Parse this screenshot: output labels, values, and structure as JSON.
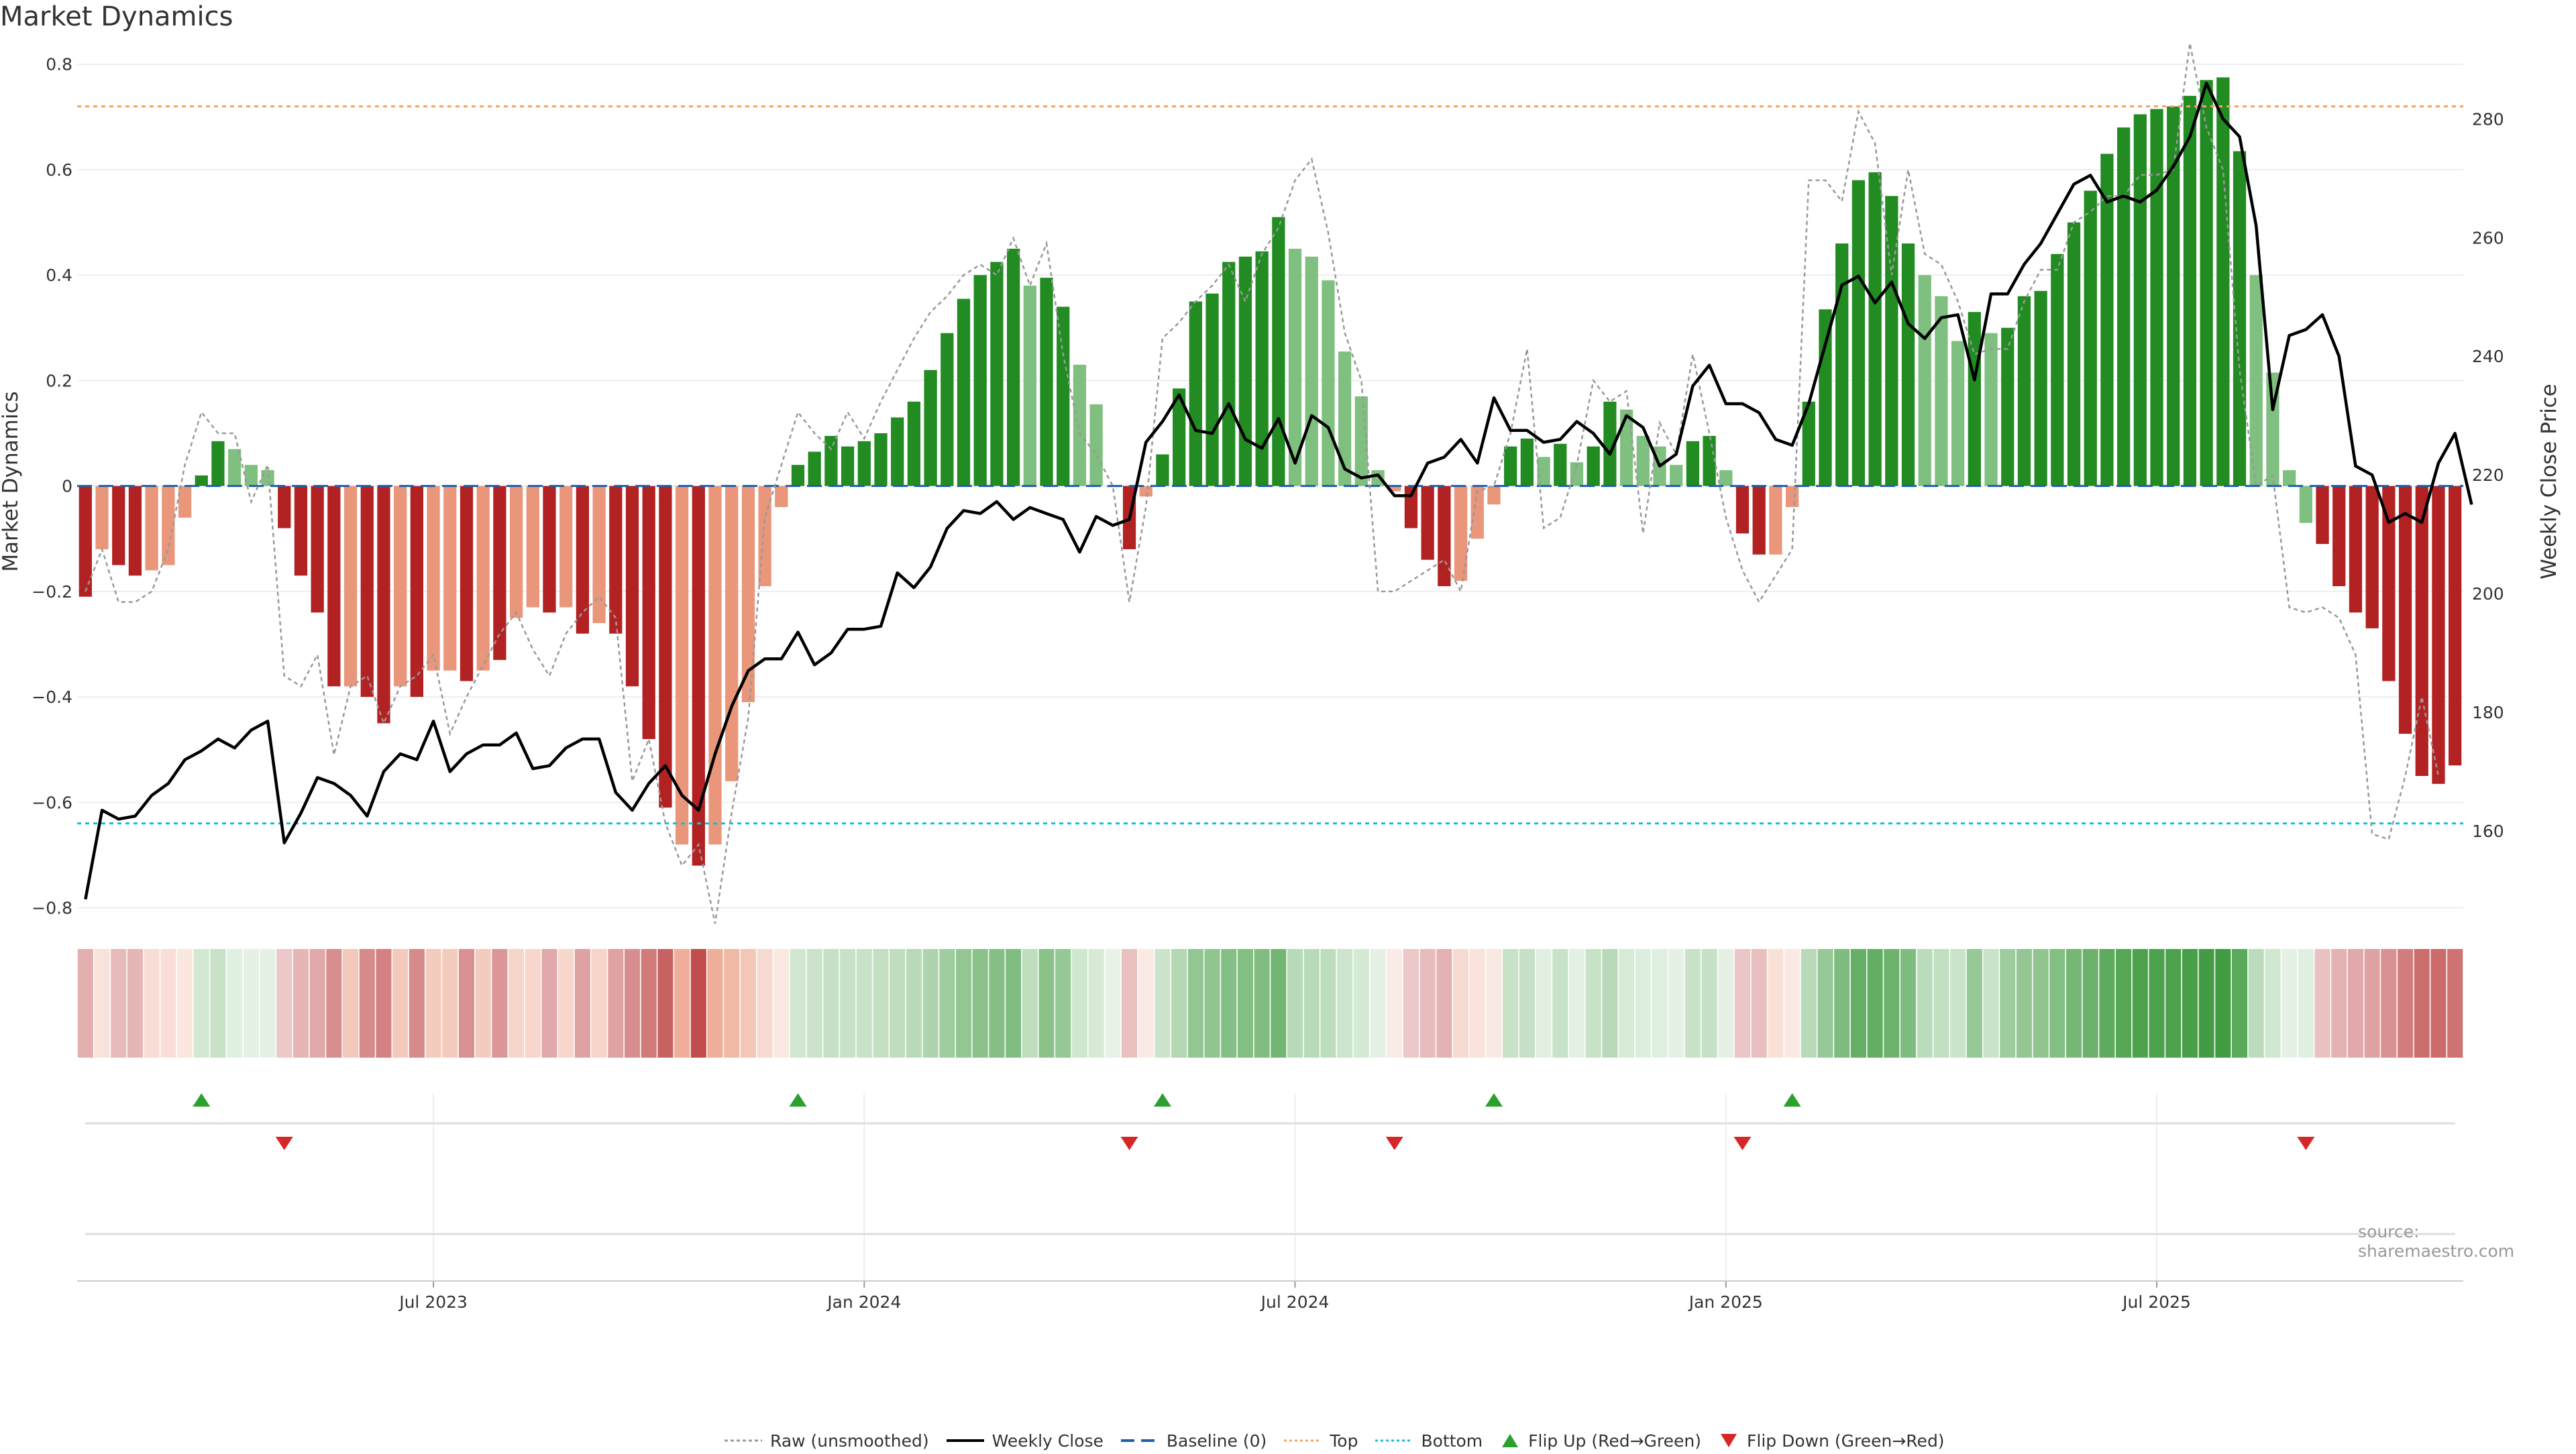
{
  "title": "Market Dynamics",
  "source": "source: sharemaestro.com",
  "chart_data": {
    "type": "bar",
    "y_left_label": "Market Dynamics",
    "y_right_label": "Weekly Close Price",
    "y_left_ticks": [
      "0.8",
      "0.6",
      "0.4",
      "0.2",
      "0",
      "−0.2",
      "−0.4",
      "−0.6",
      "−0.8"
    ],
    "y_left_tick_values": [
      0.8,
      0.6,
      0.4,
      0.2,
      0,
      -0.2,
      -0.4,
      -0.6,
      -0.8
    ],
    "y_left_range": [
      -0.84,
      0.82
    ],
    "y_right_ticks": [
      "280",
      "260",
      "240",
      "220",
      "200",
      "180",
      "160"
    ],
    "y_right_tick_values": [
      280,
      260,
      240,
      220,
      200,
      180,
      160
    ],
    "y_right_range": [
      143.5,
      291
    ],
    "x_ticks": [
      "Jul 2023",
      "Jan 2024",
      "Jul 2024",
      "Jan 2025",
      "Jul 2025"
    ],
    "x_tick_weeks": [
      21.5,
      47.5,
      73.5,
      99.5,
      125.5
    ],
    "top_level": 0.72,
    "bottom_level": -0.64,
    "bars": [
      -0.21,
      -0.12,
      -0.15,
      -0.17,
      -0.16,
      -0.15,
      -0.06,
      0.02,
      0.085,
      0.07,
      0.04,
      0.03,
      -0.08,
      -0.17,
      -0.24,
      -0.38,
      -0.38,
      -0.4,
      -0.45,
      -0.38,
      -0.4,
      -0.35,
      -0.35,
      -0.37,
      -0.35,
      -0.33,
      -0.25,
      -0.23,
      -0.24,
      -0.23,
      -0.28,
      -0.26,
      -0.28,
      -0.38,
      -0.48,
      -0.61,
      -0.68,
      -0.72,
      -0.68,
      -0.56,
      -0.41,
      -0.19,
      -0.04,
      0.04,
      0.065,
      0.095,
      0.075,
      0.085,
      0.1,
      0.13,
      0.16,
      0.22,
      0.29,
      0.355,
      0.4,
      0.425,
      0.45,
      0.38,
      0.395,
      0.34,
      0.23,
      0.155,
      -0.002,
      -0.12,
      -0.02,
      0.06,
      0.185,
      0.35,
      0.365,
      0.425,
      0.435,
      0.445,
      0.51,
      0.45,
      0.435,
      0.39,
      0.255,
      0.17,
      0.03,
      -0.01,
      -0.08,
      -0.14,
      -0.19,
      -0.18,
      -0.1,
      -0.035,
      0.075,
      0.09,
      0.055,
      0.08,
      0.045,
      0.075,
      0.16,
      0.145,
      0.095,
      0.075,
      0.04,
      0.085,
      0.095,
      0.03,
      -0.09,
      -0.13,
      -0.13,
      -0.04,
      0.16,
      0.335,
      0.46,
      0.58,
      0.595,
      0.55,
      0.46,
      0.4,
      0.36,
      0.275,
      0.33,
      0.29,
      0.3,
      0.36,
      0.37,
      0.44,
      0.5,
      0.56,
      0.63,
      0.68,
      0.705,
      0.715,
      0.72,
      0.74,
      0.77,
      0.775,
      0.635,
      0.4,
      0.215,
      0.03,
      -0.07,
      -0.11,
      -0.19,
      -0.24,
      -0.27,
      -0.37,
      -0.47,
      -0.55,
      -0.565,
      -0.53
    ],
    "states": [
      "r",
      "rl",
      "r",
      "r",
      "rl",
      "rl",
      "rl",
      "g",
      "g",
      "gl",
      "gl",
      "gl",
      "r",
      "r",
      "r",
      "r",
      "rl",
      "r",
      "r",
      "rl",
      "r",
      "rl",
      "rl",
      "r",
      "rl",
      "r",
      "rl",
      "rl",
      "r",
      "rl",
      "r",
      "rl",
      "r",
      "r",
      "r",
      "r",
      "rl",
      "r",
      "rl",
      "rl",
      "rl",
      "rl",
      "rl",
      "g",
      "g",
      "g",
      "g",
      "g",
      "g",
      "g",
      "g",
      "g",
      "g",
      "g",
      "g",
      "g",
      "g",
      "gl",
      "g",
      "g",
      "gl",
      "gl",
      "gl",
      "r",
      "rl",
      "g",
      "g",
      "g",
      "g",
      "g",
      "g",
      "g",
      "g",
      "gl",
      "gl",
      "gl",
      "gl",
      "gl",
      "gl",
      "rl",
      "r",
      "r",
      "r",
      "rl",
      "rl",
      "rl",
      "g",
      "g",
      "gl",
      "g",
      "gl",
      "g",
      "g",
      "gl",
      "gl",
      "gl",
      "gl",
      "g",
      "g",
      "gl",
      "r",
      "r",
      "rl",
      "rl",
      "g",
      "g",
      "g",
      "g",
      "g",
      "g",
      "g",
      "gl",
      "gl",
      "gl",
      "g",
      "gl",
      "g",
      "g",
      "g",
      "g",
      "g",
      "g",
      "g",
      "g",
      "g",
      "g",
      "g",
      "g",
      "g",
      "g",
      "g",
      "gl",
      "gl",
      "gl",
      "gl",
      "r",
      "r",
      "r",
      "r",
      "r",
      "r",
      "r",
      "r",
      "r",
      "rl"
    ],
    "raw": [
      -0.2,
      -0.12,
      -0.22,
      -0.22,
      -0.2,
      -0.12,
      0.04,
      0.14,
      0.1,
      0.1,
      -0.03,
      0.04,
      -0.36,
      -0.38,
      -0.32,
      -0.51,
      -0.38,
      -0.36,
      -0.45,
      -0.38,
      -0.36,
      -0.32,
      -0.47,
      -0.4,
      -0.34,
      -0.28,
      -0.24,
      -0.31,
      -0.36,
      -0.28,
      -0.24,
      -0.21,
      -0.25,
      -0.56,
      -0.48,
      -0.64,
      -0.72,
      -0.68,
      -0.83,
      -0.62,
      -0.44,
      -0.06,
      0.04,
      0.14,
      0.1,
      0.07,
      0.14,
      0.09,
      0.16,
      0.22,
      0.28,
      0.33,
      0.36,
      0.4,
      0.42,
      0.4,
      0.47,
      0.38,
      0.46,
      0.25,
      0.1,
      0.06,
      0.0,
      -0.22,
      -0.04,
      0.28,
      0.31,
      0.35,
      0.38,
      0.42,
      0.35,
      0.44,
      0.49,
      0.58,
      0.62,
      0.48,
      0.29,
      0.2,
      -0.2,
      -0.2,
      -0.18,
      -0.16,
      -0.14,
      -0.2,
      -0.01,
      0.0,
      0.1,
      0.26,
      -0.08,
      -0.06,
      0.04,
      0.2,
      0.16,
      0.18,
      -0.09,
      0.12,
      0.06,
      0.25,
      0.1,
      -0.06,
      -0.16,
      -0.22,
      -0.17,
      -0.12,
      0.58,
      0.58,
      0.54,
      0.71,
      0.65,
      0.4,
      0.6,
      0.44,
      0.42,
      0.35,
      0.25,
      0.26,
      0.26,
      0.35,
      0.41,
      0.41,
      0.5,
      0.52,
      0.55,
      0.55,
      0.59,
      0.59,
      0.6,
      0.84,
      0.68,
      0.6,
      0.22,
      0.0,
      0.02,
      -0.23,
      -0.24,
      -0.23,
      -0.25,
      -0.32,
      -0.66,
      -0.67,
      -0.55,
      -0.4,
      -0.55
    ],
    "close": [
      148.5,
      163.5,
      162.0,
      162.5,
      166.0,
      168.0,
      172.0,
      173.5,
      175.5,
      174.0,
      177.0,
      178.5,
      158.0,
      163.0,
      169.0,
      168.0,
      166.0,
      162.5,
      170.0,
      173.0,
      172.0,
      178.5,
      170.0,
      173.0,
      174.5,
      174.5,
      176.5,
      170.5,
      171.0,
      174.0,
      175.5,
      175.5,
      166.5,
      163.5,
      168.0,
      171.0,
      166.0,
      163.5,
      173.0,
      181.0,
      187.0,
      189.0,
      189.0,
      193.5,
      188.0,
      190.0,
      194.0,
      194.0,
      194.5,
      203.5,
      201.0,
      204.5,
      211.0,
      214.0,
      213.5,
      215.5,
      212.5,
      214.5,
      213.5,
      212.5,
      207.0,
      213.0,
      211.5,
      212.5,
      225.5,
      229.0,
      233.5,
      227.5,
      227.0,
      232.0,
      226.0,
      224.5,
      229.5,
      222.0,
      230.0,
      228.0,
      221.0,
      219.5,
      220.0,
      216.5,
      216.5,
      222.0,
      223.0,
      226.0,
      222.0,
      233.0,
      227.5,
      227.5,
      225.5,
      226.0,
      229.0,
      227.0,
      223.5,
      230.0,
      228.0,
      221.5,
      223.5,
      235.0,
      238.5,
      232.0,
      232.0,
      230.5,
      226.0,
      225.0,
      232.0,
      242.0,
      252.0,
      253.5,
      249.0,
      252.5,
      245.5,
      243.0,
      246.5,
      247.0,
      236.0,
      250.5,
      250.5,
      255.5,
      259.0,
      264.0,
      269.0,
      270.5,
      266.0,
      267.0,
      266.0,
      268.0,
      272.0,
      277.0,
      286.0,
      280.0,
      277.0,
      262.0,
      231.0,
      243.5,
      244.5,
      247.0,
      240.0,
      221.5,
      220.0,
      212.0,
      213.5,
      212.0,
      222.0,
      227.0,
      215.0
    ],
    "flip_up_weeks": [
      7,
      43,
      65,
      85,
      103
    ],
    "flip_down_weeks": [
      12,
      63,
      79,
      100,
      134
    ],
    "legend": [
      "Raw (unsmoothed)",
      "Weekly Close",
      "Baseline (0)",
      "Top",
      "Bottom",
      "Flip Up (Red→Green)",
      "Flip Down (Green→Red)"
    ],
    "colors": {
      "green": "#228b22",
      "green_light": "#7fbf7f",
      "red": "#b22222",
      "red_light": "#e9967a",
      "raw": "#999999",
      "close": "#000000",
      "baseline": "#1f5fa8",
      "top": "#f4a460",
      "bottom": "#17becf",
      "flip_up": "#2ca02c",
      "flip_down": "#d62728"
    }
  }
}
